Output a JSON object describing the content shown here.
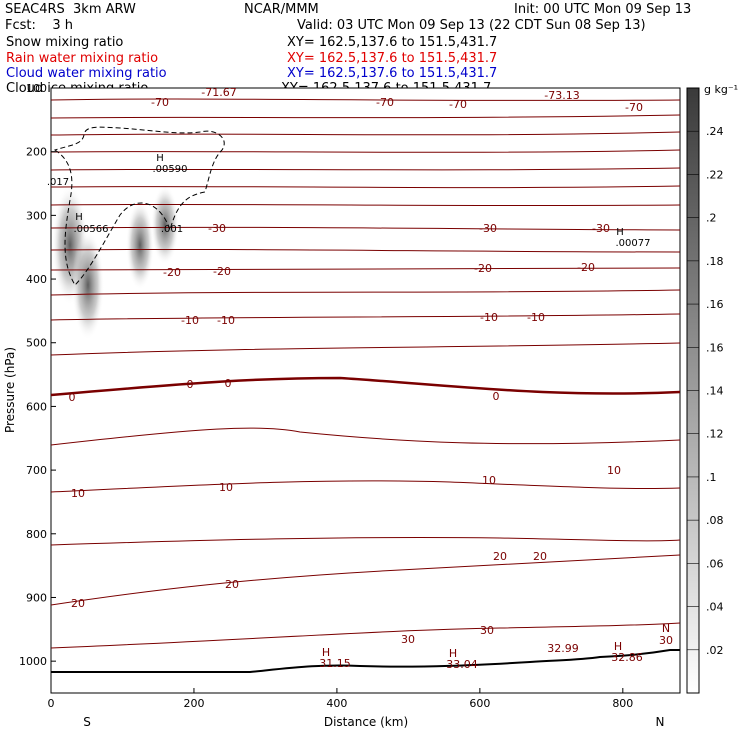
{
  "header": {
    "model": "SEAC4RS  3km ARW",
    "center": "NCAR/MMM",
    "init": "Init: 00 UTC Mon 09 Sep 13",
    "fcst": "Fcst:    3 h",
    "valid": "Valid: 03 UTC Mon 09 Sep 13 (22 CDT Sun 08 Sep 13)",
    "fields": [
      {
        "name": "Snow mixing ratio",
        "xy": "XY= 162.5,137.6 to 151.5,431.7",
        "color": "#000000"
      },
      {
        "name": "Rain water mixing ratio",
        "xy": "XY= 162.5,137.6 to 151.5,431.7",
        "color": "#e00000"
      },
      {
        "name": "Cloud water mixing ratio",
        "xy": "XY= 162.5,137.6 to 151.5,431.7",
        "color": "#0000cc"
      },
      {
        "name": "Cloud ice mixing ratio",
        "xy": "XY= 162.5,137.6 to 151.5,431.7",
        "color": "#000000"
      }
    ]
  },
  "chart_data": {
    "type": "cross-section",
    "xlabel": "Distance (km)",
    "ylabel": "Pressure (hPa)",
    "xlim": [
      0,
      880
    ],
    "ylim": [
      1050,
      100
    ],
    "xticks": [
      "0",
      "200",
      "400",
      "600",
      "800"
    ],
    "yticks": [
      "100",
      "200",
      "300",
      "400",
      "500",
      "600",
      "700",
      "800",
      "900",
      "1000"
    ],
    "x_end_labels": {
      "left": "S",
      "right": "N"
    },
    "colorbar": {
      "unit": "g kg⁻¹",
      "ticks": [
        ".02",
        ".04",
        ".06",
        ".08",
        ".1",
        ".12",
        ".14",
        ".16",
        ".16",
        ".18",
        ".2",
        ".22",
        ".24"
      ]
    },
    "temperature_contour_labels": [
      "-70",
      "-70",
      "-70",
      "-70",
      "-30",
      "-30",
      "-30",
      "-20",
      "-20",
      "-20",
      "-20",
      "-10",
      "-10",
      "-10",
      "-10",
      "0",
      "0",
      "0",
      "0",
      "10",
      "10",
      "10",
      "10",
      "20",
      "20",
      "20",
      "20",
      "30",
      "30",
      "30",
      "-71.67",
      "-73.13"
    ],
    "extrema": [
      {
        "label": "H",
        "value": ".00590"
      },
      {
        "label": "H",
        "value": ".00566"
      },
      {
        "label": "",
        "value": ".001"
      },
      {
        "label": "H",
        "value": ".00077"
      },
      {
        "label": "",
        "value": ".017"
      },
      {
        "label": "H",
        "value": "31.15"
      },
      {
        "label": "H",
        "value": "33.04"
      },
      {
        "label": "",
        "value": "32.99"
      },
      {
        "label": "H",
        "value": "32.86"
      },
      {
        "label": "N",
        "value": "30"
      }
    ],
    "legend_colors": {
      "contour": "#7a0000",
      "terrain": "#000000",
      "snow_shading": "#555555"
    }
  }
}
